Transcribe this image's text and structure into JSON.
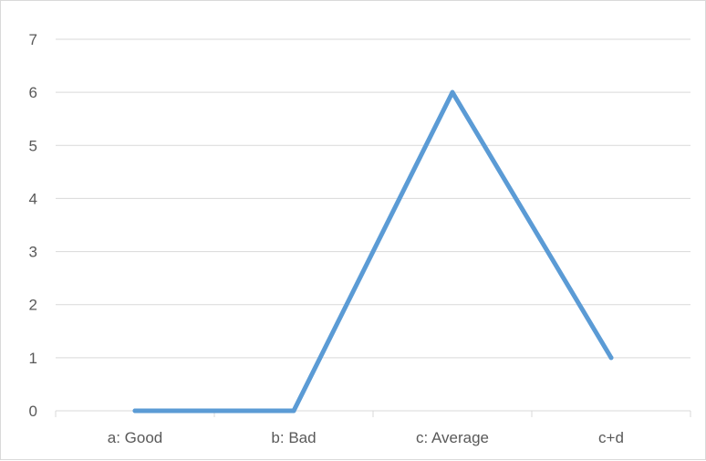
{
  "chart_data": {
    "type": "line",
    "title": "",
    "xlabel": "",
    "ylabel": "",
    "categories": [
      "a: Good",
      "b: Bad",
      "c: Average",
      "c+d"
    ],
    "series": [
      {
        "values": [
          0,
          0,
          6,
          1
        ],
        "color": "#5b9bd5"
      }
    ],
    "ylim": [
      0,
      7
    ],
    "yticks": [
      0,
      1,
      2,
      3,
      4,
      5,
      6,
      7
    ],
    "grid": true,
    "legend": "none"
  }
}
